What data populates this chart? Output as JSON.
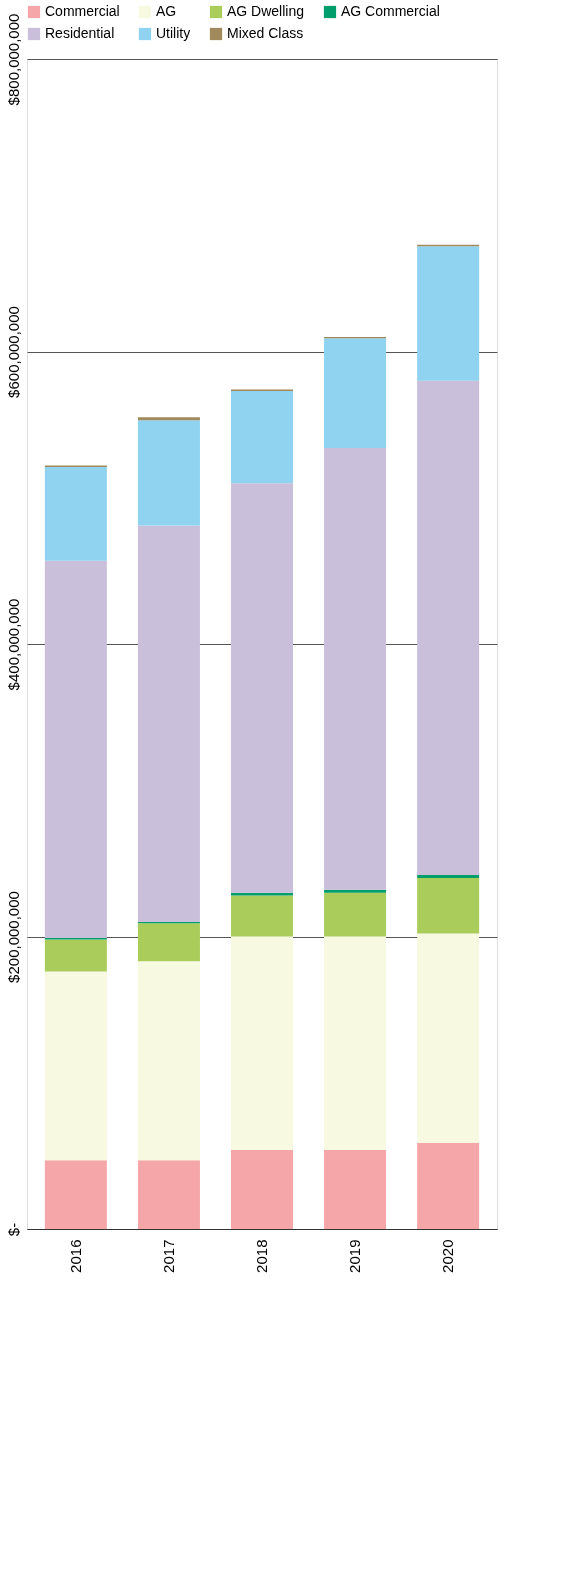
{
  "chart_data": {
    "type": "bar",
    "stacked": true,
    "categories": [
      "2016",
      "2017",
      "2018",
      "2019",
      "2020"
    ],
    "series": [
      {
        "name": "Commercial",
        "color": "#f4a6a8",
        "values": [
          47000000,
          47000000,
          54000000,
          54000000,
          59000000
        ]
      },
      {
        "name": "AG",
        "color": "#f7f9e0",
        "values": [
          129000000,
          136000000,
          146000000,
          146000000,
          143000000
        ]
      },
      {
        "name": "AG Dwelling",
        "color": "#a9cc5a",
        "values": [
          22000000,
          26000000,
          28000000,
          30000000,
          38000000
        ]
      },
      {
        "name": "AG Commercial",
        "color": "#009e6a",
        "values": [
          1000000,
          1000000,
          2000000,
          2000000,
          2000000
        ]
      },
      {
        "name": "Residential",
        "color": "#c9bfda",
        "values": [
          258000000,
          271000000,
          280000000,
          302000000,
          338000000
        ]
      },
      {
        "name": "Utility",
        "color": "#8fd3f0",
        "values": [
          64000000,
          72000000,
          63000000,
          75000000,
          92000000
        ]
      },
      {
        "name": "Mixed Class",
        "color": "#a08a5c",
        "values": [
          1000000,
          2000000,
          1000000,
          1000000,
          1000000
        ]
      }
    ],
    "ylim": [
      0,
      800000000
    ],
    "yticks": [
      {
        "value": 0,
        "label": "$-"
      },
      {
        "value": 200000000,
        "label": "$200,000,000"
      },
      {
        "value": 400000000,
        "label": "$400,000,000"
      },
      {
        "value": 600000000,
        "label": "$600,000,000"
      },
      {
        "value": 800000000,
        "label": "$800,000,000"
      }
    ],
    "grid": "y",
    "legend": "top"
  }
}
